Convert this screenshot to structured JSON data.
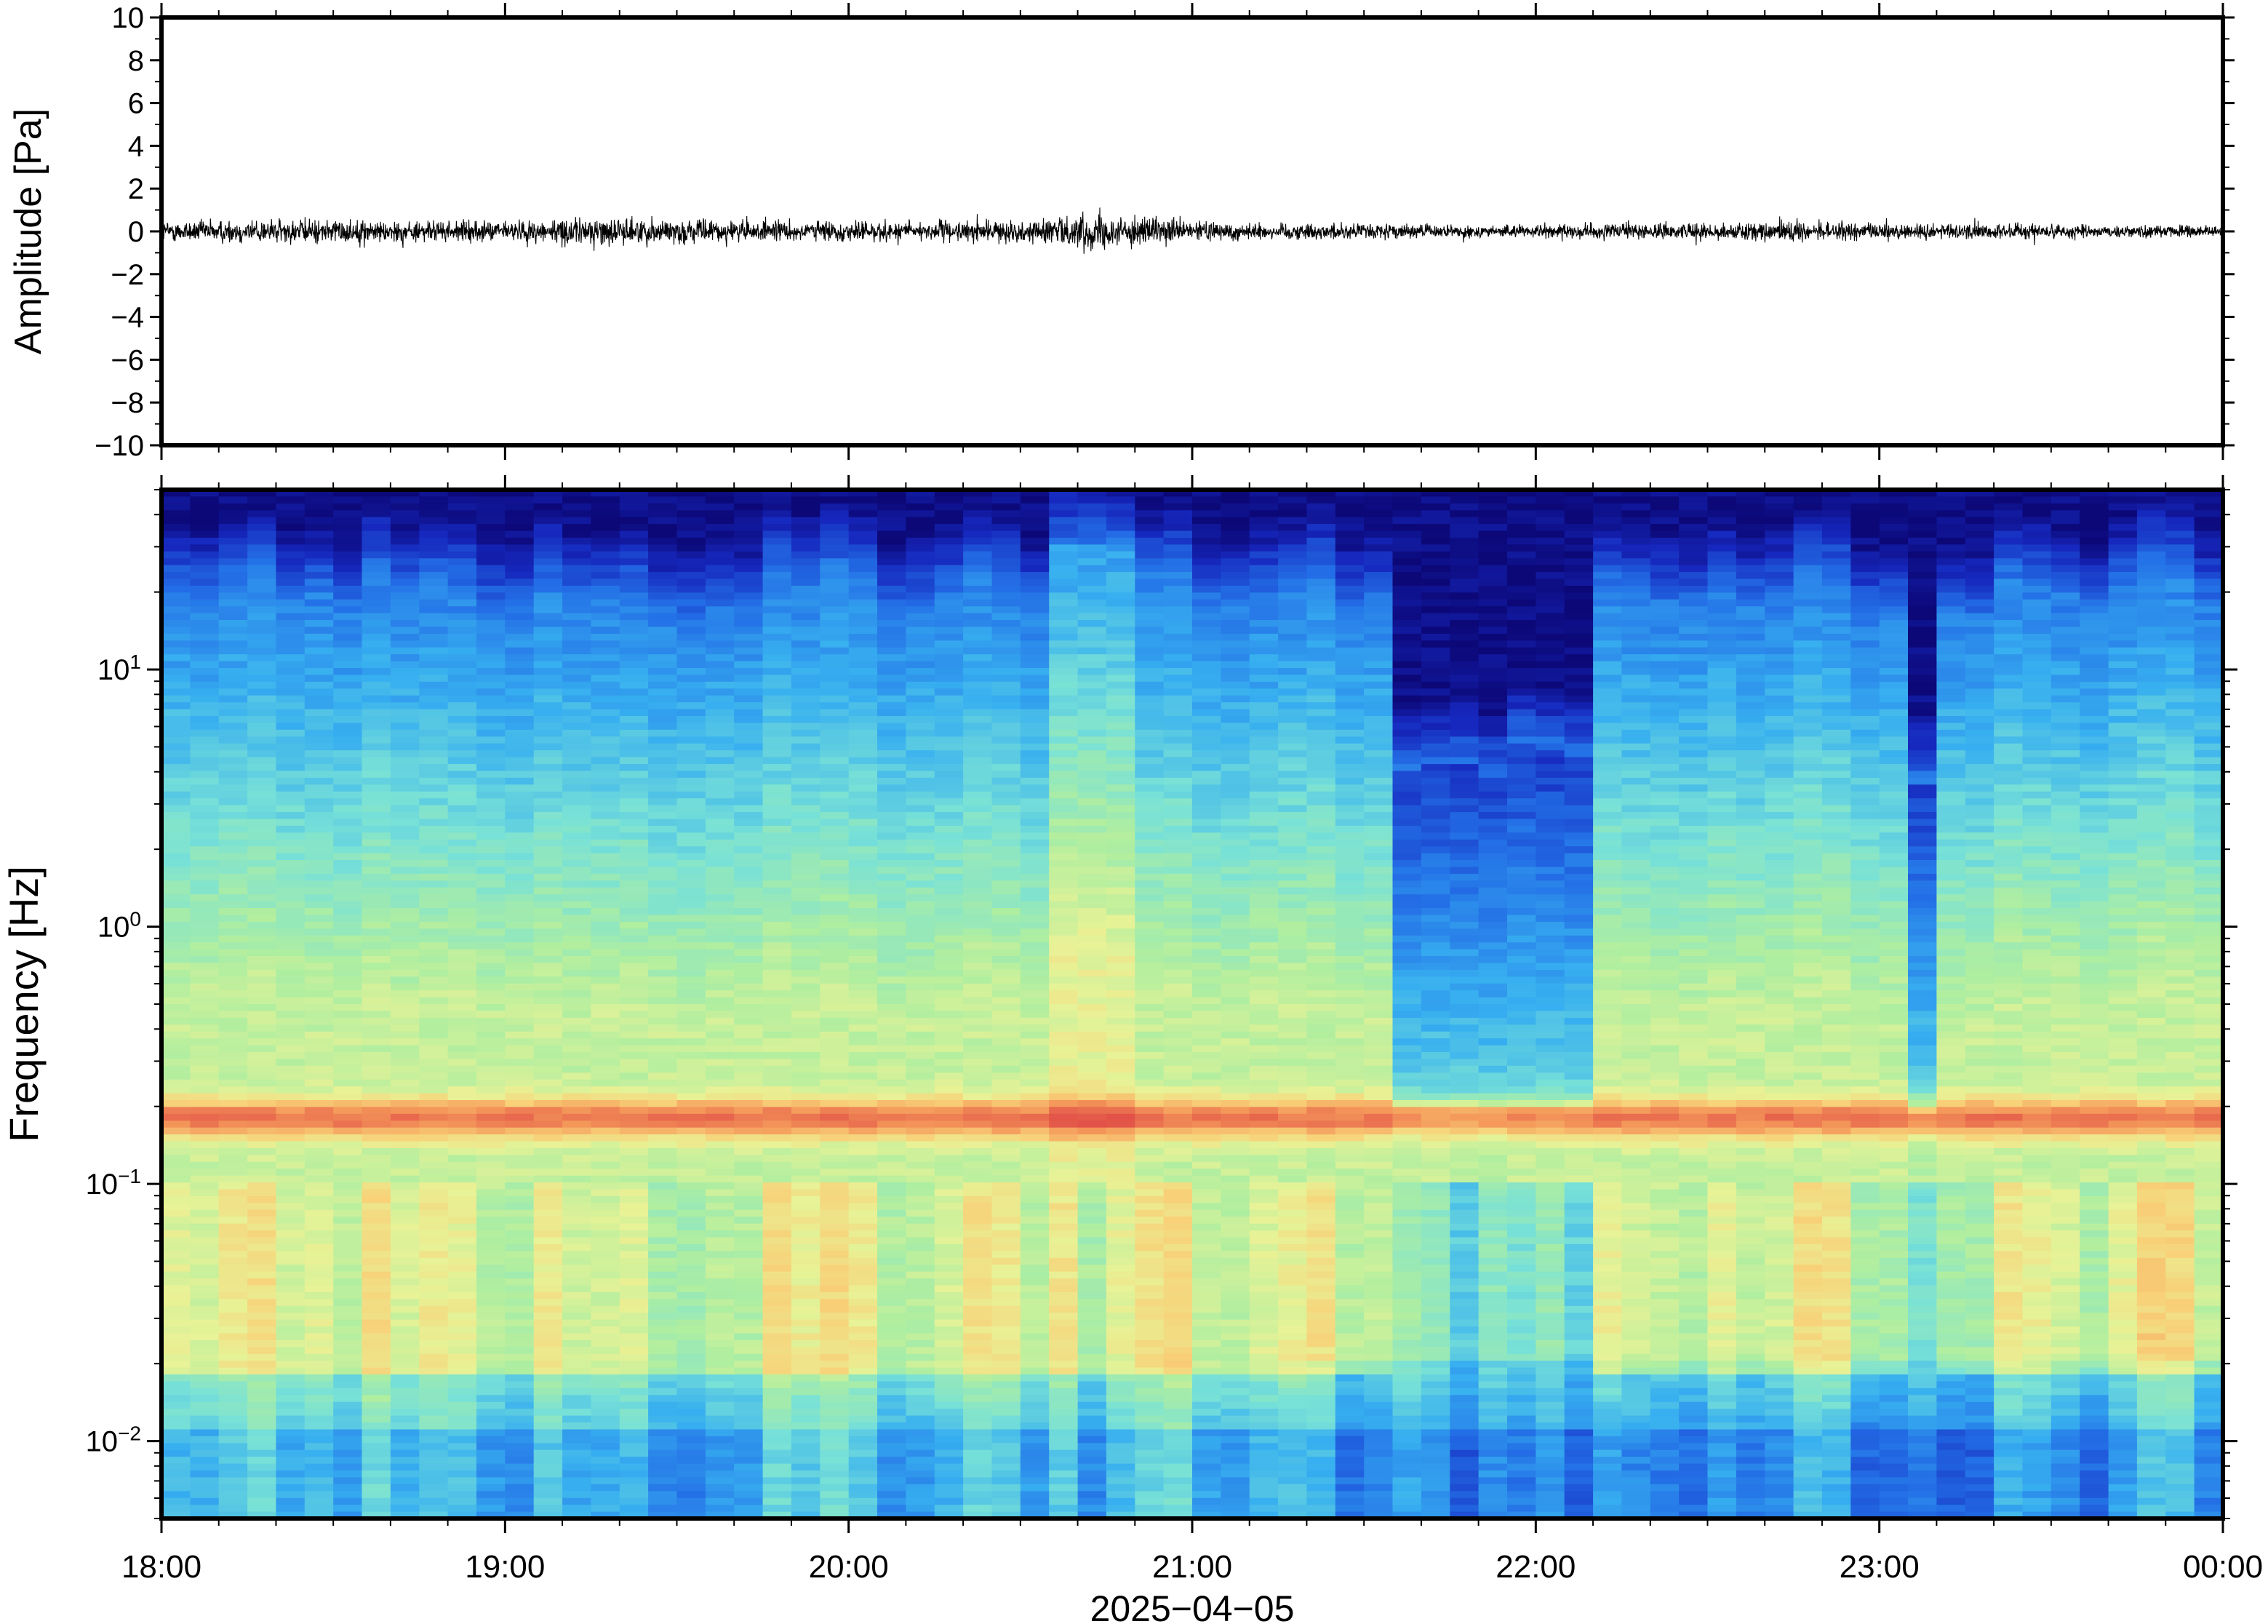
{
  "chart_data": [
    {
      "type": "line",
      "panel": "waveform",
      "ylabel": "Amplitude [Pa]",
      "ylim": [
        -10,
        10
      ],
      "yticks": [
        10,
        8,
        6,
        4,
        2,
        0,
        -2,
        -4,
        -6,
        -8,
        -10
      ],
      "ytick_labels": [
        "10",
        "8",
        "6",
        "4",
        "2",
        "0",
        "−2",
        "−4",
        "−6",
        "−8",
        "−10"
      ],
      "x_range_hours": [
        18,
        24
      ],
      "series": [
        {
          "color": "#000000",
          "envelope_hours": [
            18.0,
            18.25,
            18.5,
            18.75,
            19.0,
            19.25,
            19.5,
            19.75,
            20.0,
            20.25,
            20.5,
            20.7,
            20.75,
            21.0,
            21.25,
            21.5,
            21.75,
            22.0,
            22.25,
            22.5,
            22.75,
            23.0,
            23.25,
            23.5,
            23.75,
            24.0
          ],
          "envelope_amplitude_pa": [
            0.5,
            0.6,
            0.6,
            0.5,
            0.5,
            0.7,
            0.6,
            0.5,
            0.5,
            0.5,
            0.5,
            0.9,
            0.8,
            0.5,
            0.4,
            0.4,
            0.3,
            0.3,
            0.4,
            0.4,
            0.5,
            0.4,
            0.4,
            0.4,
            0.3,
            0.3
          ]
        }
      ]
    },
    {
      "type": "heatmap",
      "panel": "spectrogram",
      "ylabel": "Frequency [Hz]",
      "y_scale": "log",
      "ylim_hz": [
        0.005,
        50
      ],
      "yticks_hz": [
        10,
        1,
        0.1,
        0.01
      ],
      "ytick_labels": [
        {
          "base": "10",
          "exp": "1"
        },
        {
          "base": "10",
          "exp": "0"
        },
        {
          "base": "10",
          "exp": "−1"
        },
        {
          "base": "10",
          "exp": "−2"
        }
      ],
      "colormap": "jet",
      "colors": {
        "low": "#0d0d7a",
        "mid_low": "#2f8fe6",
        "mid": "#8fe0c8",
        "mid_high": "#f0e890",
        "high": "#e8604a"
      },
      "microbarom_band_hz": 0.18,
      "quiet_upper_band_hours": [
        [
          21.6,
          22.2
        ],
        [
          23.05,
          23.15
        ]
      ],
      "active_upper_band_hours": [
        [
          20.6,
          20.8
        ]
      ]
    }
  ],
  "xaxis": {
    "tick_labels": [
      "18:00",
      "19:00",
      "20:00",
      "21:00",
      "22:00",
      "23:00",
      "00:00"
    ],
    "date_label": "2025−04−05"
  }
}
